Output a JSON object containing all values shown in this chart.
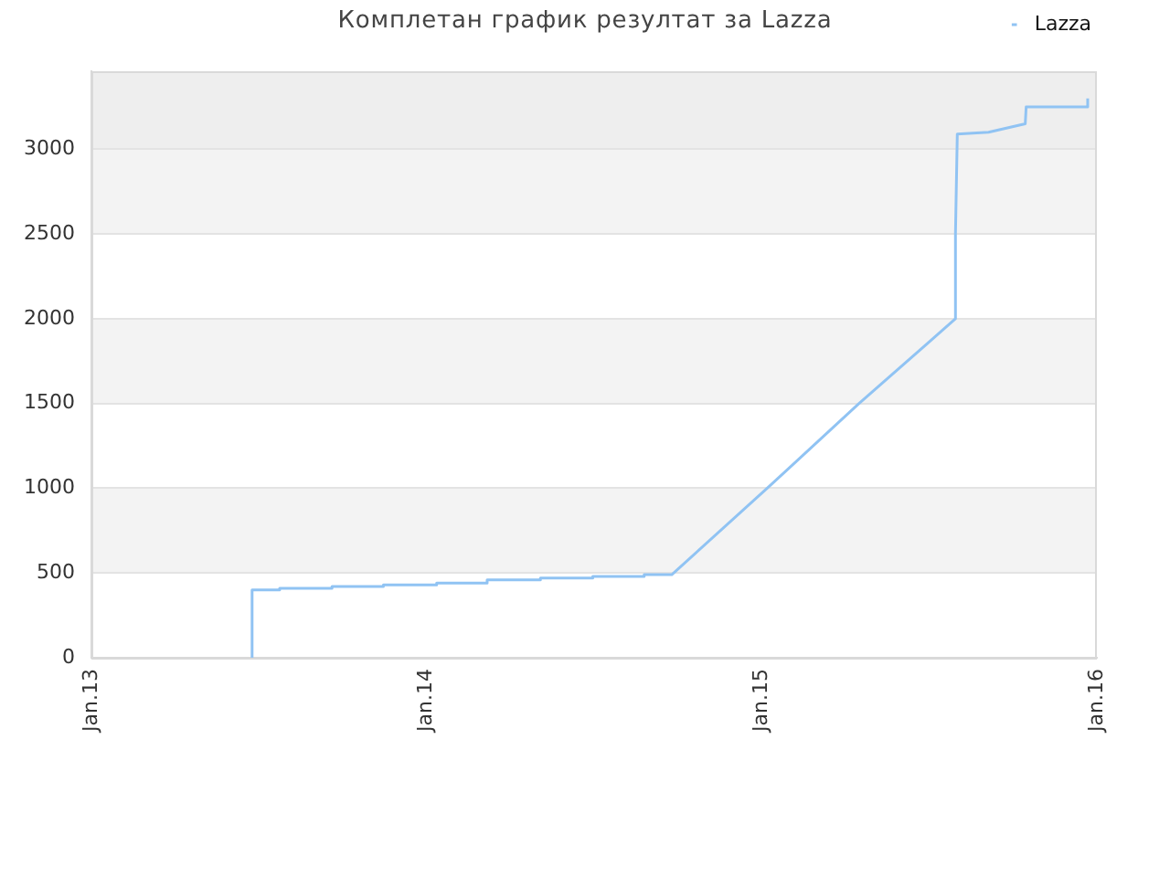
{
  "chart_data": {
    "type": "line",
    "title": "Комплетан график резултат за Lazza",
    "xlim": [
      "2013-01-01",
      "2016-01-01"
    ],
    "xticks": [
      {
        "value": "2013-01-01",
        "label": "Jan.13"
      },
      {
        "value": "2014-01-01",
        "label": "Jan.14"
      },
      {
        "value": "2015-01-01",
        "label": "Jan.15"
      },
      {
        "value": "2016-01-01",
        "label": "Jan.16"
      }
    ],
    "ylim": [
      0,
      3460
    ],
    "yticks": [
      0,
      500,
      1000,
      1500,
      2000,
      2500,
      3000
    ],
    "grid": "y",
    "legend": "top right",
    "bands": [
      {
        "axis": "y",
        "from": 500,
        "to": 1000,
        "color": "#f3f3f3"
      },
      {
        "axis": "y",
        "from": 1500,
        "to": 2000,
        "color": "#f3f3f3"
      },
      {
        "axis": "y",
        "from": 2500,
        "to": 3000,
        "color": "#f3f3f3"
      },
      {
        "axis": "y",
        "from": 3000,
        "to": 3460,
        "color": "#eeeeee"
      }
    ],
    "series": [
      {
        "name": "Lazza",
        "color": "#90c3f3",
        "x": [
          "2013-06-25",
          "2013-06-25",
          "2013-07-25",
          "2013-07-25",
          "2013-09-20",
          "2013-09-20",
          "2013-11-15",
          "2013-11-15",
          "2014-01-12",
          "2014-01-12",
          "2014-03-08",
          "2014-03-08",
          "2014-05-05",
          "2014-05-05",
          "2014-07-01",
          "2014-07-01",
          "2014-08-26",
          "2014-08-26",
          "2014-09-25",
          "2015-01-07",
          "2015-04-17",
          "2015-07-31",
          "2015-07-31",
          "2015-08-02",
          "2015-09-05",
          "2015-10-15",
          "2015-10-16",
          "2015-12-22",
          "2015-12-22"
        ],
        "values": [
          0,
          400,
          400,
          410,
          410,
          420,
          420,
          430,
          430,
          440,
          440,
          460,
          460,
          470,
          470,
          480,
          480,
          490,
          490,
          1000,
          1500,
          2000,
          2500,
          3090,
          3100,
          3150,
          3250,
          3250,
          3300
        ]
      }
    ]
  }
}
